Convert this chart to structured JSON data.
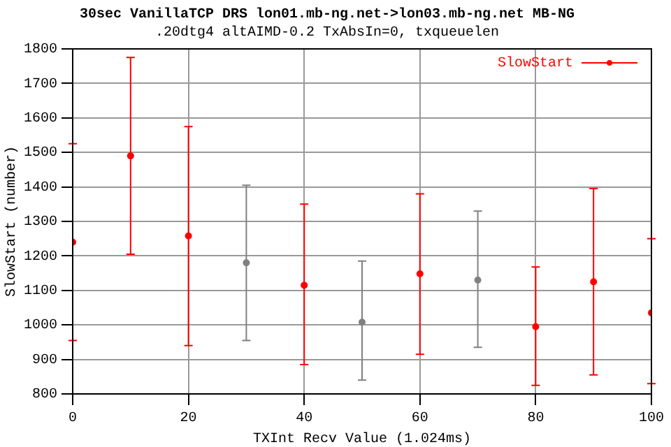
{
  "chart_data": {
    "type": "scatter",
    "title": "30sec VanillaTCP DRS lon01.mb-ng.net->lon03.mb-ng.net MB-NG",
    "subtitle": ".20dtg4 altAIMD-0.2 TxAbsIn=0, txqueuelen",
    "xlabel": "TXInt Recv Value (1.024ms)",
    "ylabel": "SlowStart (number)",
    "series": [
      {
        "name": "SlowStart",
        "color": "#ff0000",
        "x": [
          0,
          10,
          20,
          30,
          40,
          50,
          60,
          70,
          80,
          90,
          100
        ],
        "values": [
          1240,
          1490,
          1258,
          1180,
          1115,
          1008,
          1148,
          1130,
          995,
          1125,
          1035
        ],
        "colors": [
          "#ff0000",
          "#ff0000",
          "#ff0000",
          "#808080",
          "#ff0000",
          "#808080",
          "#ff0000",
          "#808080",
          "#ff0000",
          "#ff0000",
          "#ff0000"
        ],
        "errors": [
          [
            955,
            1525
          ],
          [
            1205,
            1775
          ],
          [
            940,
            1575
          ],
          [
            955,
            1405
          ],
          [
            885,
            1350
          ],
          [
            840,
            1185
          ],
          [
            915,
            1380
          ],
          [
            935,
            1330
          ],
          [
            825,
            1168
          ],
          [
            855,
            1395
          ],
          [
            830,
            1250
          ]
        ]
      }
    ],
    "xlim": [
      0,
      100
    ],
    "xticks": [
      0,
      20,
      40,
      60,
      80,
      100
    ],
    "ylim": [
      800,
      1800
    ],
    "yticks": [
      800,
      900,
      1000,
      1100,
      1200,
      1300,
      1400,
      1500,
      1600,
      1700,
      1800
    ],
    "grid": true,
    "legend": "top right",
    "marker": "circle"
  }
}
